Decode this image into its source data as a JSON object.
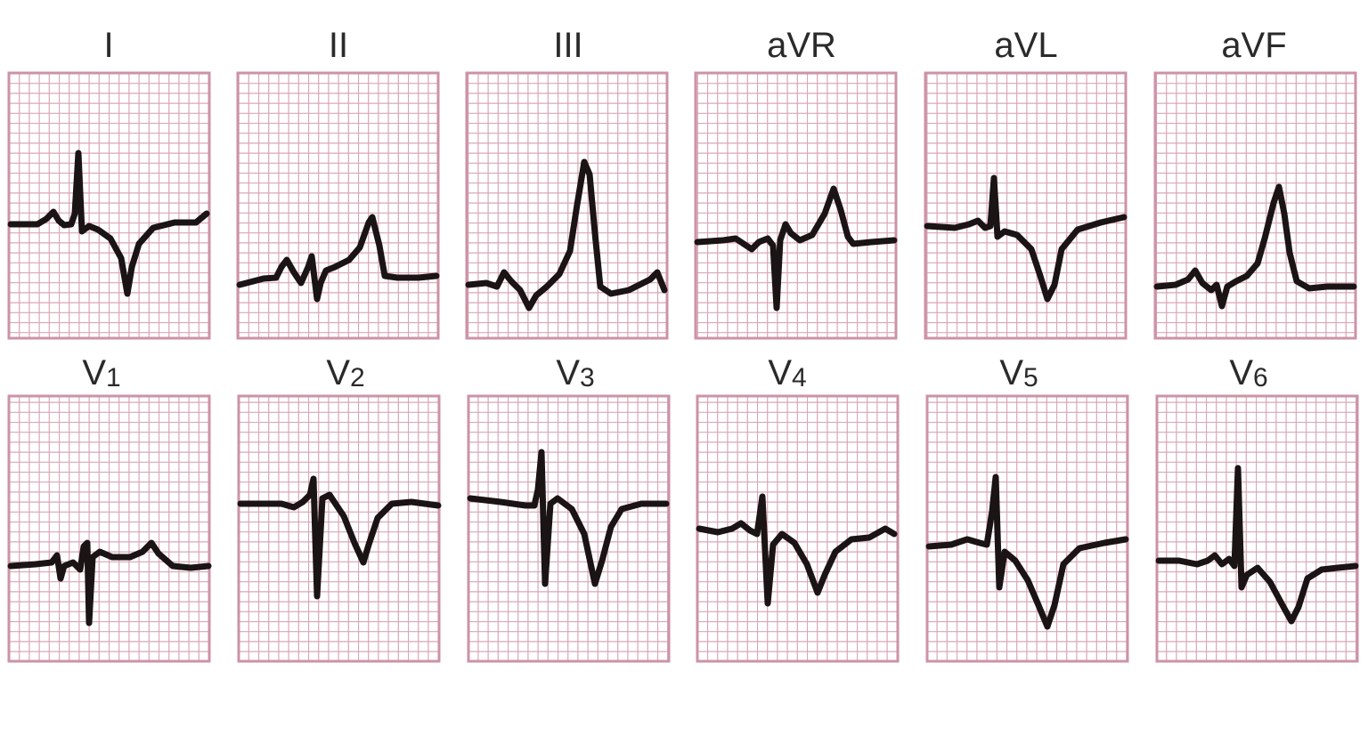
{
  "figure": {
    "grid_color": "#d8a7b5",
    "grid_major_color": "#cc93a5",
    "trace_color": "#1b1414",
    "label_color": "#2a2a2a"
  },
  "rows": [
    {
      "leads": [
        {
          "id": "I",
          "label": "I"
        },
        {
          "id": "II",
          "label": "II"
        },
        {
          "id": "III",
          "label": "III"
        },
        {
          "id": "aVR",
          "label": "aVR"
        },
        {
          "id": "aVL",
          "label": "aVL"
        },
        {
          "id": "aVF",
          "label": "aVF"
        }
      ]
    },
    {
      "leads": [
        {
          "id": "V1",
          "label": "V",
          "sub": "1"
        },
        {
          "id": "V2",
          "label": "V",
          "sub": "2"
        },
        {
          "id": "V3",
          "label": "V",
          "sub": "3"
        },
        {
          "id": "V4",
          "label": "V",
          "sub": "4"
        },
        {
          "id": "V5",
          "label": "V",
          "sub": "5"
        },
        {
          "id": "V6",
          "label": "V",
          "sub": "6"
        }
      ]
    }
  ]
}
